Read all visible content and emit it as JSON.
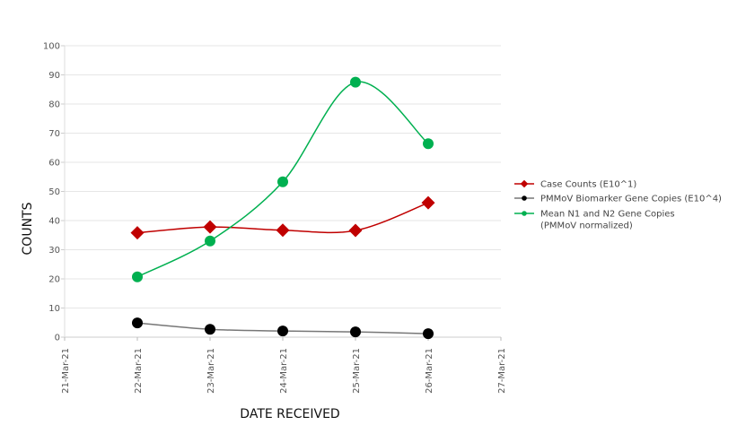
{
  "chart_data": {
    "type": "line",
    "smooth": true,
    "xlabel": "DATE RECEIVED",
    "ylabel": "COUNTS",
    "x_ticks": [
      "21-Mar-21",
      "22-Mar-21",
      "23-Mar-21",
      "24-Mar-21",
      "25-Mar-21",
      "26-Mar-21",
      "27-Mar-21"
    ],
    "x": [
      "22-Mar-21",
      "23-Mar-21",
      "24-Mar-21",
      "25-Mar-21",
      "26-Mar-21"
    ],
    "y_ticks": [
      0,
      10,
      20,
      30,
      40,
      50,
      60,
      70,
      80,
      90,
      100
    ],
    "ylim": [
      0,
      100
    ],
    "grid": "horizontal",
    "legend_position": "right",
    "series": [
      {
        "name": "Case Counts (E10^1)",
        "color": "#c00000",
        "marker": "diamond",
        "values": [
          35.8,
          37.8,
          36.7,
          36.6,
          46.1
        ]
      },
      {
        "name": "PMMoV Biomarker Gene Copies (E10^4)",
        "color": "#000000",
        "line_color": "#777777",
        "marker": "circle",
        "values": [
          4.9,
          2.7,
          2.1,
          1.8,
          1.2
        ]
      },
      {
        "name": "Mean N1 and N2 Gene Copies (PMMoV normalized)",
        "name_lines": [
          "Mean N1 and N2 Gene Copies",
          "(PMMoV normalized)"
        ],
        "color": "#00b050",
        "marker": "circle",
        "values": [
          20.7,
          33.0,
          53.3,
          87.5,
          66.4
        ]
      }
    ]
  }
}
